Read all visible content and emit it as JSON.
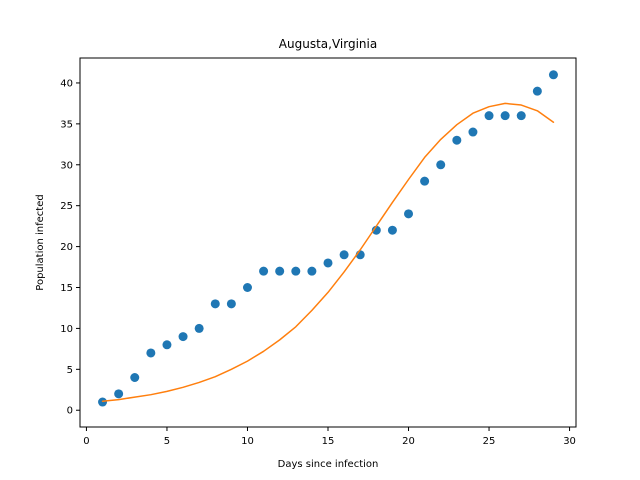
{
  "chart_data": {
    "type": "scatter",
    "title": "Augusta,Virginia",
    "xlabel": "Days since infection",
    "ylabel": "Population infected",
    "xlim": [
      -0.4,
      30.4
    ],
    "ylim": [
      -2.05,
      43.05
    ],
    "xticks": [
      0,
      5,
      10,
      15,
      20,
      25,
      30
    ],
    "yticks": [
      0,
      5,
      10,
      15,
      20,
      25,
      30,
      35,
      40
    ],
    "grid": false,
    "series": [
      {
        "type": "scatter",
        "color": "#1f77b4",
        "x": [
          1,
          2,
          3,
          4,
          5,
          6,
          7,
          8,
          9,
          10,
          11,
          12,
          13,
          14,
          15,
          16,
          17,
          18,
          19,
          20,
          21,
          22,
          23,
          24,
          25,
          26,
          27,
          28,
          29
        ],
        "y": [
          1,
          2,
          4,
          7,
          8,
          9,
          10,
          13,
          13,
          15,
          17,
          17,
          17,
          17,
          18,
          19,
          19,
          22,
          22,
          24,
          28,
          30,
          33,
          34,
          36,
          36,
          36,
          39,
          41
        ]
      },
      {
        "type": "line",
        "color": "#ff7f0e",
        "x": [
          1,
          2,
          3,
          4,
          5,
          6,
          7,
          8,
          9,
          10,
          11,
          12,
          13,
          14,
          15,
          16,
          17,
          18,
          19,
          20,
          21,
          22,
          23,
          24,
          25,
          26,
          27,
          28,
          29
        ],
        "y": [
          1.1,
          1.3,
          1.6,
          1.9,
          2.3,
          2.8,
          3.4,
          4.1,
          5.0,
          6.0,
          7.2,
          8.6,
          10.2,
          12.2,
          14.4,
          16.9,
          19.6,
          22.5,
          25.4,
          28.2,
          30.9,
          33.1,
          34.9,
          36.3,
          37.1,
          37.5,
          37.3,
          36.6,
          35.2
        ]
      }
    ]
  }
}
